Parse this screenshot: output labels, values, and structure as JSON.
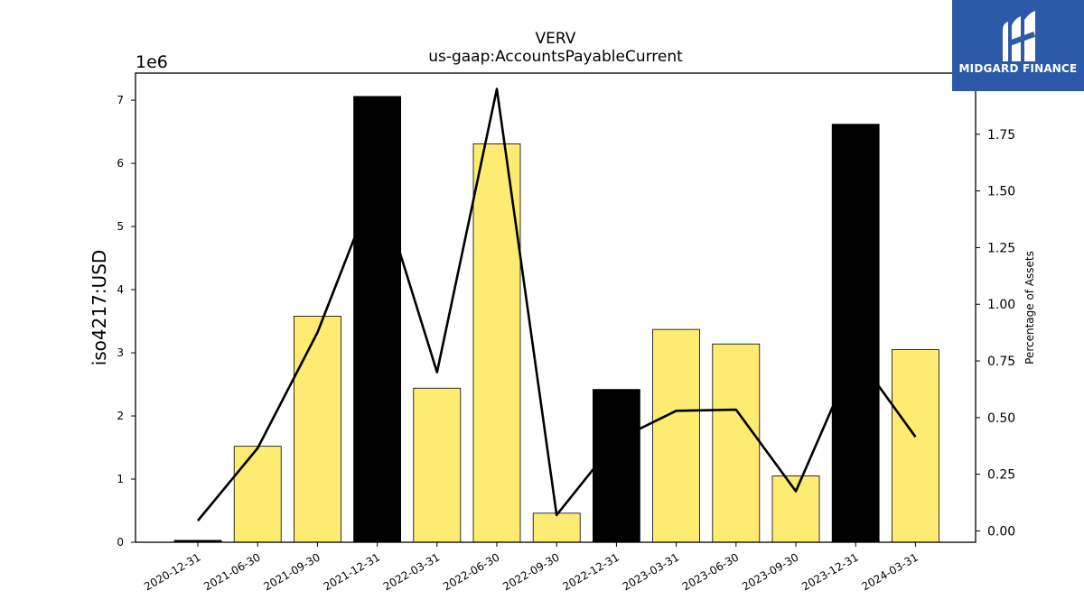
{
  "chart_data": {
    "type": "bar",
    "title": "VERV",
    "subtitle": "us-gaap:AccountsPayableCurrent",
    "ylabel": "iso4217:USD",
    "y2label": "Percentage of Assets",
    "y_offset_label": "1e6",
    "categories": [
      "2020-12-31",
      "2021-06-30",
      "2021-09-30",
      "2021-12-31",
      "2022-03-31",
      "2022-06-30",
      "2022-09-30",
      "2022-12-31",
      "2023-03-31",
      "2023-06-30",
      "2023-09-30",
      "2023-12-31",
      "2024-03-31"
    ],
    "series": [
      {
        "type": "bar",
        "values": [
          30000,
          1520000,
          3580000,
          7060000,
          2440000,
          6310000,
          460000,
          2420000,
          3370000,
          3140000,
          1050000,
          6620000,
          3050000
        ],
        "colors": [
          "#000000",
          "#fdeb72",
          "#fdeb72",
          "#000000",
          "#fdeb72",
          "#fdeb72",
          "#fdeb72",
          "#000000",
          "#fdeb72",
          "#fdeb72",
          "#fdeb72",
          "#000000",
          "#fdeb72"
        ]
      },
      {
        "type": "line",
        "axis": "right",
        "values": [
          0.045,
          0.365,
          0.875,
          1.55,
          0.7,
          1.95,
          0.07,
          0.4,
          0.53,
          0.535,
          0.175,
          0.78,
          0.415
        ],
        "color": "#000000"
      }
    ],
    "ylim": [
      0,
      7430000
    ],
    "y2lim": [
      -0.05,
      2.02
    ],
    "yticks": [
      "0",
      "1",
      "2",
      "3",
      "4",
      "5",
      "6",
      "7"
    ],
    "y2ticks": [
      "0.00",
      "0.25",
      "0.50",
      "0.75",
      "1.00",
      "1.25",
      "1.50",
      "1.75"
    ],
    "grid": false
  },
  "logo": {
    "text": "MIDGARD FINANCE",
    "bg_color": "#2d5aa8"
  }
}
